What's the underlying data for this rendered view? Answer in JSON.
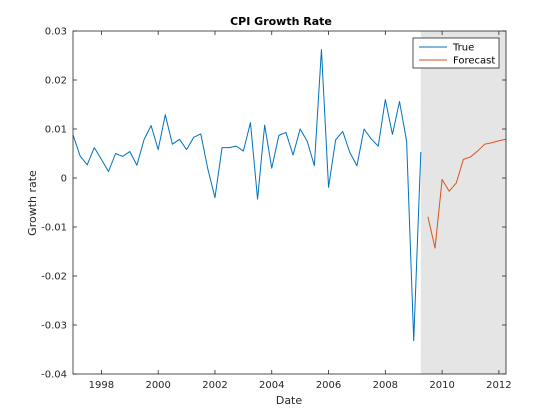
{
  "chart_data": {
    "type": "line",
    "title": "CPI Growth Rate",
    "xlabel": "Date",
    "ylabel": "Growth rate",
    "xlim": [
      1997.0,
      2012.25
    ],
    "ylim": [
      -0.04,
      0.03
    ],
    "x_ticks": [
      1998,
      2000,
      2002,
      2004,
      2006,
      2008,
      2010,
      2012
    ],
    "x_tick_labels": [
      "1998",
      "2000",
      "2002",
      "2004",
      "2006",
      "2008",
      "2010",
      "2012"
    ],
    "y_ticks": [
      0.03,
      0.02,
      0.01,
      0,
      -0.01,
      -0.02,
      -0.03,
      -0.04
    ],
    "y_tick_labels": [
      "0.03",
      "0.02",
      "0.01",
      "0",
      "-0.01",
      "-0.02",
      "-0.03",
      "-0.04"
    ],
    "grid": false,
    "legend_position": "top-right",
    "shaded_region": {
      "x_start": 2009.25,
      "x_end": 2012.25,
      "color": "#e5e5e5"
    },
    "series": [
      {
        "name": "True",
        "color": "#0072bd",
        "points": [
          [
            1997.0,
            0.0088
          ],
          [
            1997.25,
            0.0045
          ],
          [
            1997.5,
            0.0027
          ],
          [
            1997.75,
            0.0062
          ],
          [
            1998.0,
            0.0038
          ],
          [
            1998.25,
            0.0013
          ],
          [
            1998.5,
            0.005
          ],
          [
            1998.75,
            0.0044
          ],
          [
            1999.0,
            0.0054
          ],
          [
            1999.25,
            0.0026
          ],
          [
            1999.5,
            0.0078
          ],
          [
            1999.75,
            0.0107
          ],
          [
            2000.0,
            0.0058
          ],
          [
            2000.25,
            0.0129
          ],
          [
            2000.5,
            0.0069
          ],
          [
            2000.75,
            0.0079
          ],
          [
            2001.0,
            0.0058
          ],
          [
            2001.25,
            0.0083
          ],
          [
            2001.5,
            0.009
          ],
          [
            2001.75,
            0.0018
          ],
          [
            2002.0,
            -0.004
          ],
          [
            2002.25,
            0.0062
          ],
          [
            2002.5,
            0.0062
          ],
          [
            2002.75,
            0.0065
          ],
          [
            2003.0,
            0.0055
          ],
          [
            2003.25,
            0.0113
          ],
          [
            2003.5,
            -0.0043
          ],
          [
            2003.75,
            0.0108
          ],
          [
            2004.0,
            0.002
          ],
          [
            2004.25,
            0.0087
          ],
          [
            2004.5,
            0.0093
          ],
          [
            2004.75,
            0.0047
          ],
          [
            2005.0,
            0.01
          ],
          [
            2005.25,
            0.0075
          ],
          [
            2005.5,
            0.0025
          ],
          [
            2005.75,
            0.0262
          ],
          [
            2006.0,
            -0.0019
          ],
          [
            2006.25,
            0.0078
          ],
          [
            2006.5,
            0.0095
          ],
          [
            2006.75,
            0.0052
          ],
          [
            2007.0,
            0.0025
          ],
          [
            2007.25,
            0.01
          ],
          [
            2007.5,
            0.008
          ],
          [
            2007.75,
            0.0065
          ],
          [
            2008.0,
            0.016
          ],
          [
            2008.25,
            0.0089
          ],
          [
            2008.5,
            0.0156
          ],
          [
            2008.75,
            0.0075
          ],
          [
            2009.0,
            -0.0332
          ],
          [
            2009.25,
            0.0053
          ]
        ]
      },
      {
        "name": "Forecast",
        "color": "#d95319",
        "points": [
          [
            2009.5,
            -0.0079
          ],
          [
            2009.75,
            -0.0143
          ],
          [
            2010.0,
            -0.0003
          ],
          [
            2010.25,
            -0.0027
          ],
          [
            2010.5,
            -0.001
          ],
          [
            2010.75,
            0.0038
          ],
          [
            2011.0,
            0.0043
          ],
          [
            2011.25,
            0.0055
          ],
          [
            2011.5,
            0.0069
          ],
          [
            2011.75,
            0.0072
          ],
          [
            2012.0,
            0.0076
          ],
          [
            2012.25,
            0.0079
          ]
        ]
      }
    ]
  }
}
